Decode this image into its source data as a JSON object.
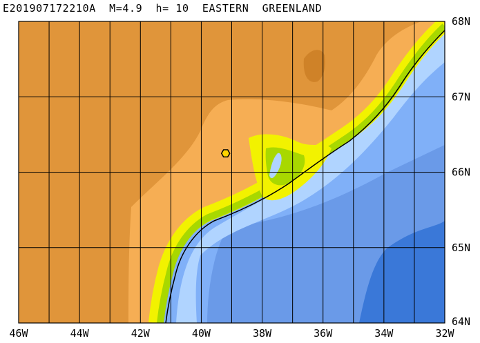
{
  "title": "E201907172210A  M=4.9  h= 10  EASTERN  GREENLAND",
  "map": {
    "lon_labels": [
      "46W",
      "44W",
      "42W",
      "40W",
      "38W",
      "36W",
      "34W",
      "32W"
    ],
    "lat_labels": [
      "68N",
      "67N",
      "66N",
      "65N",
      "64N"
    ],
    "lon_range": [
      -46,
      -32
    ],
    "lat_range": [
      64,
      68
    ],
    "grid_lon_step": 1,
    "grid_lat_step": 1,
    "epicenter": {
      "lon": -39.2,
      "lat": 66.25,
      "marker": "hexagon-marker"
    },
    "colors": {
      "land_high": "#e0953a",
      "land_peak": "#cf8228",
      "land_mid": "#f6ae54",
      "coast_yellow": "#f2f200",
      "coast_green": "#a8d800",
      "coast_green2": "#7ec000",
      "ocean_shelf": "#b0d4ff",
      "ocean_mid": "#80b0f8",
      "ocean_deep": "#6a9ae8",
      "ocean_deeper": "#3a78d8",
      "marker_fill": "#ffd400"
    }
  }
}
